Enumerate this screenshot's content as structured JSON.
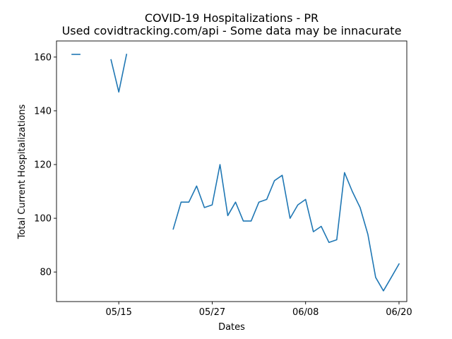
{
  "chart_data": {
    "type": "line",
    "title": "COVID-19 Hospitalizations - PR",
    "subtitle": "Used covidtracking.com/api - Some data may be innacurate",
    "xlabel": "Dates",
    "ylabel": "Total Current Hospitalizations",
    "grid": false,
    "line_color": "#1f77b4",
    "xlim": [
      "2020-05-07",
      "2020-06-21"
    ],
    "ylim": [
      69,
      166
    ],
    "x_ticks": [
      "2020-05-15",
      "2020-05-27",
      "2020-06-08",
      "2020-06-20"
    ],
    "x_tick_labels": [
      "05/15",
      "05/27",
      "06/08",
      "06/20"
    ],
    "y_ticks": [
      80,
      100,
      120,
      140,
      160
    ],
    "y_tick_labels": [
      "80",
      "100",
      "120",
      "140",
      "160"
    ],
    "series": [
      {
        "x": [
          "2020-05-09",
          "2020-05-10",
          "2020-05-14",
          "2020-05-15",
          "2020-05-16",
          "2020-05-22",
          "2020-05-23",
          "2020-05-24",
          "2020-05-25",
          "2020-05-26",
          "2020-05-27",
          "2020-05-28",
          "2020-05-29",
          "2020-05-30",
          "2020-05-31",
          "2020-06-01",
          "2020-06-02",
          "2020-06-03",
          "2020-06-04",
          "2020-06-05",
          "2020-06-06",
          "2020-06-07",
          "2020-06-08",
          "2020-06-09",
          "2020-06-10",
          "2020-06-11",
          "2020-06-12",
          "2020-06-13",
          "2020-06-14",
          "2020-06-15",
          "2020-06-16",
          "2020-06-17",
          "2020-06-18",
          "2020-06-19",
          "2020-06-20"
        ],
        "values": [
          161,
          161,
          159,
          147,
          161,
          96,
          106,
          106,
          112,
          104,
          105,
          120,
          101,
          106,
          99,
          99,
          106,
          107,
          114,
          116,
          100,
          105,
          107,
          95,
          97,
          91,
          92,
          117,
          110,
          104,
          94,
          78,
          73,
          78,
          83
        ],
        "segments": [
          [
            0,
            1
          ],
          [
            2,
            4
          ],
          [
            5,
            34
          ]
        ]
      }
    ]
  }
}
